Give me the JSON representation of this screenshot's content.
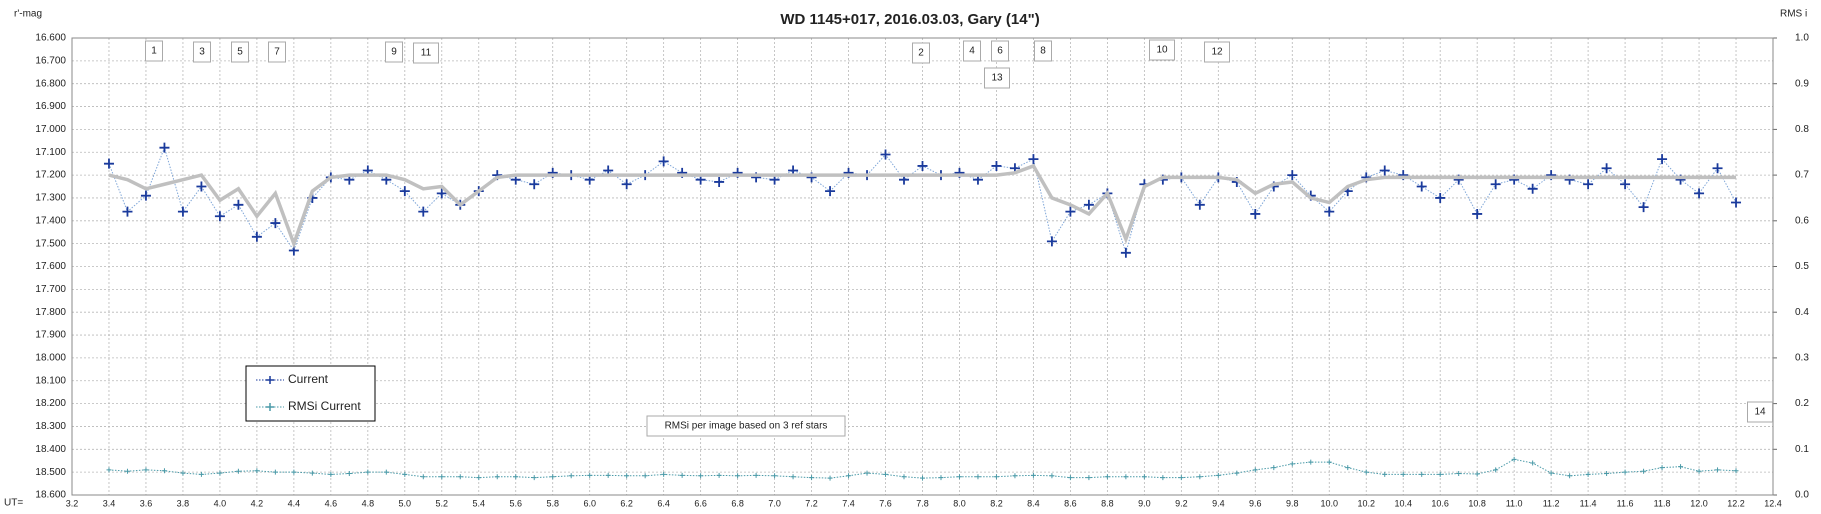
{
  "chart_data": {
    "type": "line",
    "title": "WD 1145+017,  2016.03.03,   Gary (14\")",
    "y_label": "r'-mag",
    "y2_label": "RMS i",
    "x_label": "UT=",
    "xlim": [
      3.2,
      12.4
    ],
    "ylim": [
      18.6,
      16.6
    ],
    "y2lim": [
      0,
      1
    ],
    "grid": true,
    "legend": "lower left",
    "xticks": [
      {
        "value": 3.2,
        "label": "3.2"
      },
      {
        "value": 3.4,
        "label": "3.4"
      },
      {
        "value": 3.6,
        "label": "3.6"
      },
      {
        "value": 3.8,
        "label": "3.8"
      },
      {
        "value": 4.0,
        "label": "4.0"
      },
      {
        "value": 4.2,
        "label": "4.2"
      },
      {
        "value": 4.4,
        "label": "4.4"
      },
      {
        "value": 4.6,
        "label": "4.6"
      },
      {
        "value": 4.8,
        "label": "4.8"
      },
      {
        "value": 5.0,
        "label": "5.0"
      },
      {
        "value": 5.2,
        "label": "5.2"
      },
      {
        "value": 5.4,
        "label": "5.4"
      },
      {
        "value": 5.6,
        "label": "5.6"
      },
      {
        "value": 5.8,
        "label": "5.8"
      },
      {
        "value": 6.0,
        "label": "6.0"
      },
      {
        "value": 6.2,
        "label": "6.2"
      },
      {
        "value": 6.4,
        "label": "6.4"
      },
      {
        "value": 6.6,
        "label": "6.6"
      },
      {
        "value": 6.8,
        "label": "6.8"
      },
      {
        "value": 7.0,
        "label": "7.0"
      },
      {
        "value": 7.2,
        "label": "7.2"
      },
      {
        "value": 7.4,
        "label": "7.4"
      },
      {
        "value": 7.6,
        "label": "7.6"
      },
      {
        "value": 7.8,
        "label": "7.8"
      },
      {
        "value": 8.0,
        "label": "8.0"
      },
      {
        "value": 8.2,
        "label": "8.2"
      },
      {
        "value": 8.4,
        "label": "8.4"
      },
      {
        "value": 8.6,
        "label": "8.6"
      },
      {
        "value": 8.8,
        "label": "8.8"
      },
      {
        "value": 9.0,
        "label": "9.0"
      },
      {
        "value": 9.2,
        "label": "9.2"
      },
      {
        "value": 9.4,
        "label": "9.4"
      },
      {
        "value": 9.6,
        "label": "9.6"
      },
      {
        "value": 9.8,
        "label": "9.8"
      },
      {
        "value": 10.0,
        "label": "10.0"
      },
      {
        "value": 10.2,
        "label": "10.2"
      },
      {
        "value": 10.4,
        "label": "10.4"
      },
      {
        "value": 10.6,
        "label": "10.6"
      },
      {
        "value": 10.8,
        "label": "10.8"
      },
      {
        "value": 11.0,
        "label": "11.0"
      },
      {
        "value": 11.2,
        "label": "11.2"
      },
      {
        "value": 11.4,
        "label": "11.4"
      },
      {
        "value": 11.6,
        "label": "11.6"
      },
      {
        "value": 11.8,
        "label": "11.8"
      },
      {
        "value": 12.0,
        "label": "12.0"
      },
      {
        "value": 12.2,
        "label": "12.2"
      },
      {
        "value": 12.4,
        "label": "12.4"
      }
    ],
    "yticks": [
      {
        "value": 16.6,
        "label": "16.600"
      },
      {
        "value": 16.7,
        "label": "16.700"
      },
      {
        "value": 16.8,
        "label": "16.800"
      },
      {
        "value": 16.9,
        "label": "16.900"
      },
      {
        "value": 17.0,
        "label": "17.000"
      },
      {
        "value": 17.1,
        "label": "17.100"
      },
      {
        "value": 17.2,
        "label": "17.200"
      },
      {
        "value": 17.3,
        "label": "17.300"
      },
      {
        "value": 17.4,
        "label": "17.400"
      },
      {
        "value": 17.5,
        "label": "17.500"
      },
      {
        "value": 17.6,
        "label": "17.600"
      },
      {
        "value": 17.7,
        "label": "17.700"
      },
      {
        "value": 17.8,
        "label": "17.800"
      },
      {
        "value": 17.9,
        "label": "17.900"
      },
      {
        "value": 18.0,
        "label": "18.000"
      },
      {
        "value": 18.1,
        "label": "18.100"
      },
      {
        "value": 18.2,
        "label": "18.200"
      },
      {
        "value": 18.3,
        "label": "18.300"
      },
      {
        "value": 18.4,
        "label": "18.400"
      },
      {
        "value": 18.5,
        "label": "18.500"
      },
      {
        "value": 18.6,
        "label": "18.600"
      }
    ],
    "y2ticks": [
      {
        "value": 0,
        "label": "0.0"
      },
      {
        "value": 0.1,
        "label": "0.1"
      },
      {
        "value": 0.2,
        "label": "0.2"
      },
      {
        "value": 0.3,
        "label": "0.3"
      },
      {
        "value": 0.4,
        "label": "0.4"
      },
      {
        "value": 0.5,
        "label": "0.5"
      },
      {
        "value": 0.6,
        "label": "0.6"
      },
      {
        "value": 0.7,
        "label": "0.7"
      },
      {
        "value": 0.8,
        "label": "0.8"
      },
      {
        "value": 0.9,
        "label": "0.9"
      },
      {
        "value": 1,
        "label": "1.0"
      }
    ],
    "x": [
      3.4,
      3.5,
      3.6,
      3.7,
      3.8,
      3.9,
      4.0,
      4.1,
      4.2,
      4.3,
      4.4,
      4.5,
      4.6,
      4.7,
      4.8,
      4.9,
      5.0,
      5.1,
      5.2,
      5.3,
      5.4,
      5.5,
      5.6,
      5.7,
      5.8,
      5.9,
      6.0,
      6.1,
      6.2,
      6.3,
      6.4,
      6.5,
      6.6,
      6.7,
      6.8,
      6.9,
      7.0,
      7.1,
      7.2,
      7.3,
      7.4,
      7.5,
      7.6,
      7.7,
      7.8,
      7.9,
      8.0,
      8.1,
      8.2,
      8.3,
      8.4,
      8.5,
      8.6,
      8.7,
      8.8,
      8.9,
      9.0,
      9.1,
      9.2,
      9.3,
      9.4,
      9.5,
      9.6,
      9.7,
      9.8,
      9.9,
      10.0,
      10.1,
      10.2,
      10.3,
      10.4,
      10.5,
      10.6,
      10.7,
      10.8,
      10.9,
      11.0,
      11.1,
      11.2,
      11.3,
      11.4,
      11.5,
      11.6,
      11.7,
      11.8,
      11.9,
      12.0,
      12.1,
      12.2
    ],
    "series": [
      {
        "name": "Current",
        "color": "#1a3a9c",
        "values": [
          17.15,
          17.36,
          17.29,
          17.08,
          17.36,
          17.25,
          17.38,
          17.33,
          17.47,
          17.41,
          17.53,
          17.3,
          17.21,
          17.22,
          17.18,
          17.22,
          17.27,
          17.36,
          17.28,
          17.33,
          17.27,
          17.2,
          17.22,
          17.24,
          17.19,
          17.2,
          17.22,
          17.18,
          17.24,
          17.2,
          17.14,
          17.19,
          17.22,
          17.23,
          17.19,
          17.21,
          17.22,
          17.18,
          17.21,
          17.27,
          17.19,
          17.2,
          17.11,
          17.22,
          17.16,
          17.2,
          17.19,
          17.22,
          17.16,
          17.17,
          17.13,
          17.49,
          17.36,
          17.33,
          17.28,
          17.54,
          17.24,
          17.22,
          17.21,
          17.33,
          17.21,
          17.23,
          17.37,
          17.25,
          17.2,
          17.29,
          17.36,
          17.27,
          17.21,
          17.18,
          17.2,
          17.25,
          17.3,
          17.22,
          17.37,
          17.24,
          17.22,
          17.26,
          17.2,
          17.22,
          17.24,
          17.17,
          17.24,
          17.34,
          17.13,
          17.22,
          17.28,
          17.17,
          17.32
        ]
      },
      {
        "color": "#c0c0c0",
        "values": [
          17.2,
          17.22,
          17.26,
          17.24,
          17.22,
          17.2,
          17.31,
          17.26,
          17.38,
          17.28,
          17.5,
          17.27,
          17.21,
          17.2,
          17.2,
          17.2,
          17.22,
          17.26,
          17.25,
          17.33,
          17.27,
          17.21,
          17.2,
          17.2,
          17.2,
          17.2,
          17.2,
          17.2,
          17.2,
          17.2,
          17.2,
          17.2,
          17.2,
          17.2,
          17.2,
          17.2,
          17.2,
          17.2,
          17.2,
          17.2,
          17.2,
          17.2,
          17.2,
          17.2,
          17.2,
          17.2,
          17.2,
          17.2,
          17.2,
          17.19,
          17.16,
          17.3,
          17.33,
          17.37,
          17.28,
          17.48,
          17.25,
          17.21,
          17.21,
          17.21,
          17.21,
          17.22,
          17.28,
          17.24,
          17.23,
          17.3,
          17.32,
          17.25,
          17.22,
          17.21,
          17.21,
          17.21,
          17.21,
          17.21,
          17.21,
          17.21,
          17.21,
          17.21,
          17.21,
          17.21,
          17.21,
          17.21,
          17.21,
          17.21,
          17.21,
          17.21,
          17.21,
          17.21,
          17.21
        ]
      },
      {
        "name": "RMSi Current",
        "color": "#4a9aa8",
        "axis": "y2",
        "values": [
          0.055,
          0.052,
          0.055,
          0.053,
          0.048,
          0.045,
          0.048,
          0.052,
          0.053,
          0.05,
          0.05,
          0.048,
          0.045,
          0.047,
          0.05,
          0.05,
          0.045,
          0.04,
          0.04,
          0.04,
          0.038,
          0.04,
          0.04,
          0.038,
          0.04,
          0.042,
          0.043,
          0.043,
          0.042,
          0.042,
          0.045,
          0.043,
          0.042,
          0.043,
          0.042,
          0.043,
          0.042,
          0.04,
          0.038,
          0.037,
          0.042,
          0.048,
          0.045,
          0.04,
          0.037,
          0.038,
          0.04,
          0.04,
          0.04,
          0.042,
          0.043,
          0.042,
          0.038,
          0.038,
          0.04,
          0.04,
          0.04,
          0.038,
          0.038,
          0.04,
          0.043,
          0.048,
          0.055,
          0.06,
          0.068,
          0.072,
          0.072,
          0.06,
          0.05,
          0.045,
          0.045,
          0.045,
          0.045,
          0.047,
          0.046,
          0.055,
          0.078,
          0.07,
          0.048,
          0.042,
          0.045,
          0.047,
          0.05,
          0.052,
          0.06,
          0.062,
          0.052,
          0.055,
          0.053
        ]
      }
    ],
    "annotations": [
      "1",
      "3",
      "5",
      "7",
      "9",
      "11",
      "2",
      "4",
      "6",
      "13",
      "8",
      "10",
      "12",
      "14",
      "RMSi per image based on 3 ref stars"
    ]
  }
}
